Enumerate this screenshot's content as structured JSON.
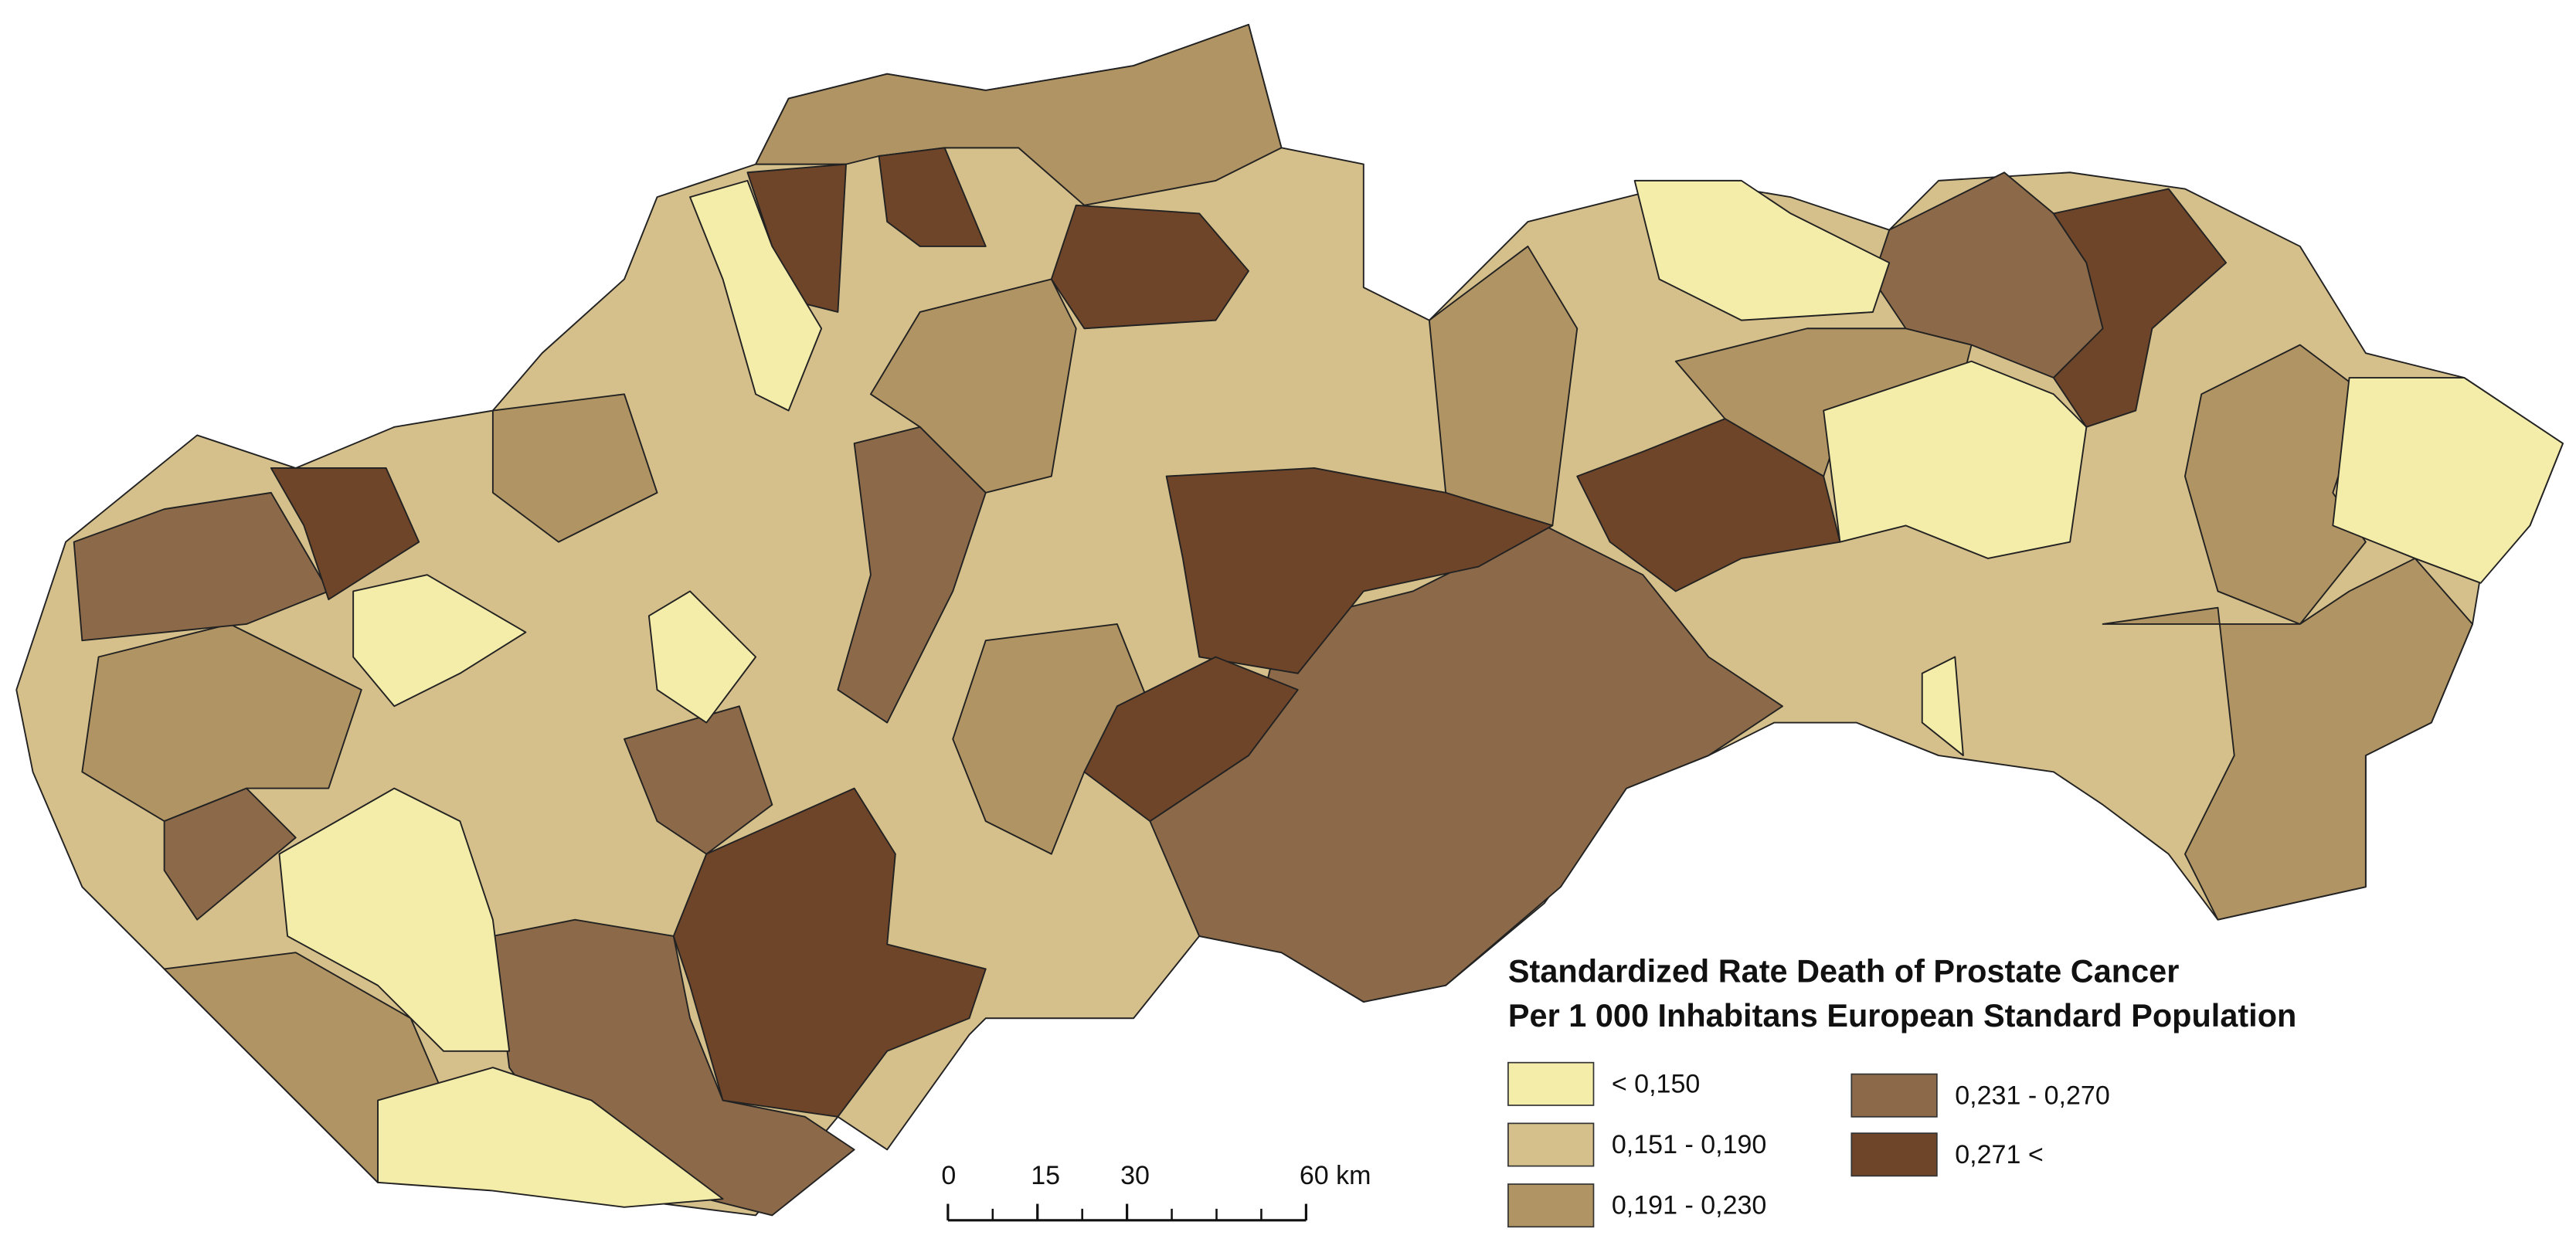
{
  "legend": {
    "title": [
      "Standardized Rate Death of Prostate Cancer",
      "Per 1 000 Inhabitans European Standard Population"
    ],
    "classes": [
      {
        "label": "< 0,150",
        "color": "#f4eca9"
      },
      {
        "label": "0,151 - 0,190",
        "color": "#d5bf8a"
      },
      {
        "label": "0,191 - 0,230",
        "color": "#b19463"
      },
      {
        "label": "0,231 - 0,270",
        "color": "#8c6a49"
      },
      {
        "label": "0,271 <",
        "color": "#6f452a"
      }
    ]
  },
  "scale_bar": {
    "ticks": [
      0,
      15,
      30,
      {
        "value": 60,
        "label": "60 km"
      }
    ]
  }
}
